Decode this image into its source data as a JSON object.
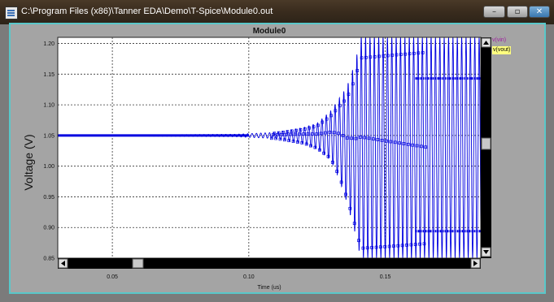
{
  "window": {
    "title": "C:\\Program Files (x86)\\Tanner EDA\\Demo\\T-Spice\\Module0.out",
    "buttons": {
      "minimize": "–",
      "maximize": "▫",
      "close": "✕"
    }
  },
  "legend": {
    "items": [
      "v(vin)",
      "v(vout)"
    ]
  },
  "colors": {
    "trace": "#0000e0",
    "accent": "#59c7c9",
    "vin": "#a020a0",
    "vout_bg": "#ffff80"
  },
  "chart_data": {
    "type": "line",
    "title": "Module0",
    "xlabel": "Time (us)",
    "ylabel": "Voltage (V)",
    "xlim": [
      0.03,
      0.185
    ],
    "ylim": [
      0.85,
      1.21
    ],
    "x_ticks": [
      0.05,
      0.1,
      0.15
    ],
    "x_tick_labels": [
      "0.05",
      "0.10",
      "0.15"
    ],
    "y_ticks": [
      0.85,
      0.9,
      0.95,
      1.0,
      1.05,
      1.1,
      1.15,
      1.2
    ],
    "y_tick_labels": [
      "0.85",
      "0.90",
      "0.95",
      "1.00",
      "1.05",
      "1.10",
      "1.15",
      "1.20"
    ],
    "grid": true,
    "legend_position": "right",
    "series": [
      {
        "name": "v(vout)",
        "description_points": [
          [
            0.03,
            1.05
          ],
          [
            0.09,
            1.05
          ],
          [
            0.1,
            1.052
          ],
          [
            0.11,
            1.048
          ],
          [
            0.115,
            1.055
          ],
          [
            0.12,
            1.043
          ],
          [
            0.125,
            1.065
          ],
          [
            0.13,
            1.03
          ],
          [
            0.133,
            1.095
          ],
          [
            0.135,
            0.97
          ],
          [
            0.137,
            1.13
          ],
          [
            0.139,
            0.88
          ],
          [
            0.141,
            1.21
          ],
          [
            0.15,
            0.85
          ],
          [
            0.185,
            1.21
          ]
        ],
        "envelope_upper": [
          [
            0.03,
            1.05
          ],
          [
            0.095,
            1.052
          ],
          [
            0.11,
            1.055
          ],
          [
            0.12,
            1.063
          ],
          [
            0.125,
            1.07
          ],
          [
            0.13,
            1.09
          ],
          [
            0.133,
            1.11
          ],
          [
            0.136,
            1.13
          ],
          [
            0.139,
            1.17
          ],
          [
            0.141,
            1.21
          ],
          [
            0.185,
            1.21
          ]
        ],
        "envelope_lower": [
          [
            0.03,
            1.05
          ],
          [
            0.095,
            1.048
          ],
          [
            0.11,
            1.045
          ],
          [
            0.12,
            1.037
          ],
          [
            0.125,
            1.028
          ],
          [
            0.13,
            1.01
          ],
          [
            0.133,
            0.98
          ],
          [
            0.136,
            0.94
          ],
          [
            0.139,
            0.89
          ],
          [
            0.141,
            0.85
          ],
          [
            0.185,
            0.85
          ]
        ],
        "plateaus": [
          {
            "x": [
              0.161,
              0.185
            ],
            "y": 1.143
          },
          {
            "x": [
              0.161,
              0.185
            ],
            "y": 0.894
          }
        ]
      }
    ]
  }
}
